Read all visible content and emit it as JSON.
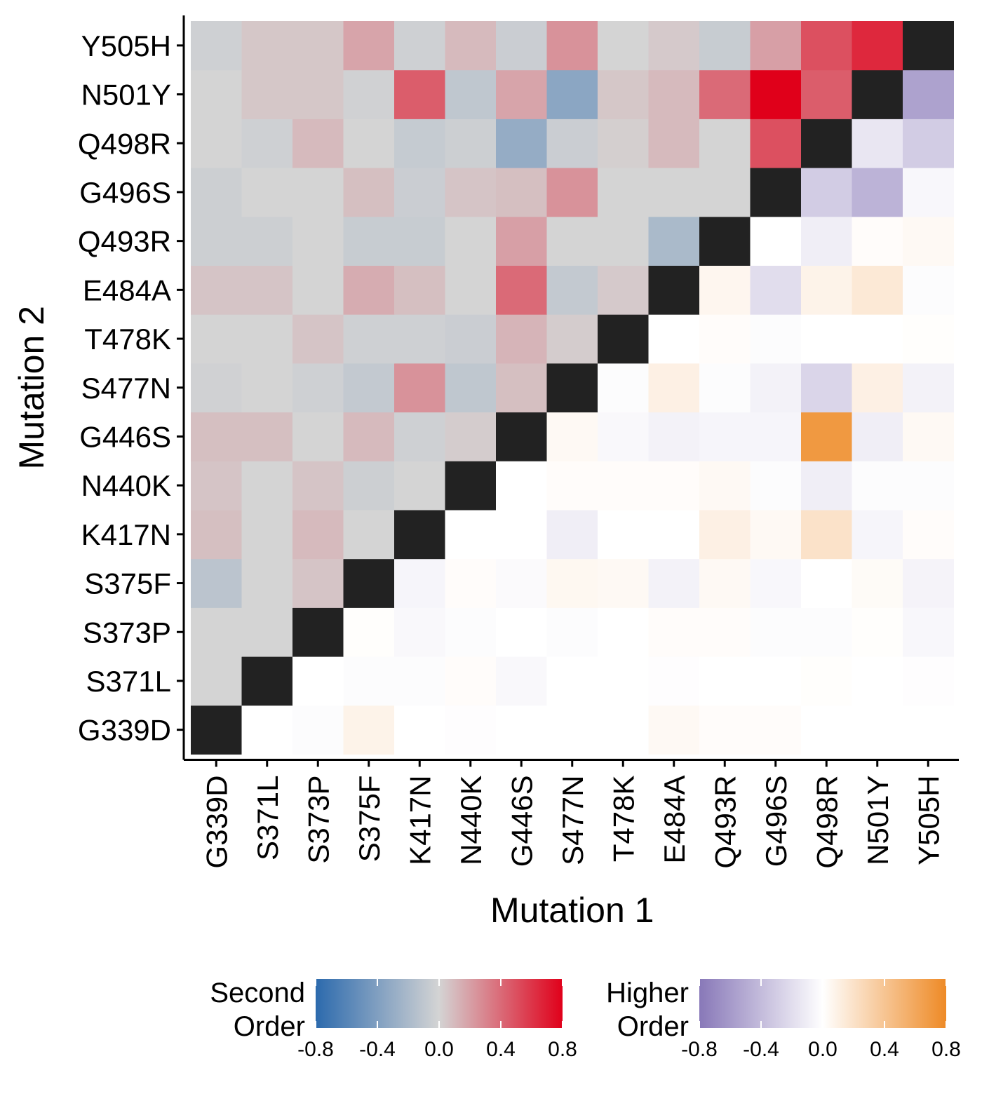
{
  "chart_data": {
    "type": "heatmap",
    "xlabel": "Mutation 1",
    "ylabel": "Mutation 2",
    "mutations": [
      "G339D",
      "S371L",
      "S373P",
      "S375F",
      "K417N",
      "N440K",
      "G446S",
      "S477N",
      "T478K",
      "E484A",
      "Q493R",
      "G496S",
      "Q498R",
      "N501Y",
      "Y505H"
    ],
    "note_layout": "lower-left triangle = Second Order (x < y), upper-right triangle = Higher Order (x > y), diagonal = black",
    "second_order": [
      [],
      [
        0.0
      ],
      [
        0.0,
        0.0
      ],
      [
        -0.12,
        0.0,
        0.06
      ],
      [
        0.08,
        0.0,
        0.1,
        0.0
      ],
      [
        0.06,
        0.0,
        0.06,
        -0.04,
        0.0
      ],
      [
        0.08,
        0.08,
        0.0,
        0.1,
        -0.03,
        0.03
      ],
      [
        -0.02,
        0.0,
        -0.03,
        -0.08,
        0.25,
        -0.1,
        0.08
      ],
      [
        0.0,
        0.0,
        0.06,
        -0.03,
        -0.03,
        -0.05,
        0.12,
        0.03
      ],
      [
        0.06,
        0.06,
        0.0,
        0.15,
        0.08,
        0.0,
        0.4,
        -0.08,
        0.04
      ],
      [
        -0.04,
        -0.04,
        0.0,
        -0.06,
        -0.06,
        0.0,
        0.2,
        0.0,
        0.0,
        -0.2
      ],
      [
        -0.04,
        0.0,
        0.0,
        0.08,
        -0.05,
        0.06,
        0.08,
        0.25,
        0.0,
        0.0,
        0.0
      ],
      [
        0.0,
        -0.03,
        0.1,
        0.0,
        -0.07,
        -0.04,
        -0.3,
        -0.05,
        0.02,
        0.1,
        0.0,
        0.5
      ],
      [
        0.0,
        0.05,
        0.05,
        -0.02,
        0.45,
        -0.1,
        0.18,
        -0.35,
        0.05,
        0.1,
        0.4,
        0.8,
        0.45
      ],
      [
        -0.03,
        0.05,
        0.05,
        0.18,
        -0.03,
        0.1,
        -0.05,
        0.25,
        0.0,
        0.04,
        -0.06,
        0.2,
        0.5,
        0.65
      ]
    ],
    "higher_order": [
      [
        null,
        0.0,
        -0.02,
        0.08,
        0.0,
        -0.01,
        0.0,
        0.0,
        0.0,
        0.04,
        0.02,
        0.02,
        0.0,
        0.0,
        0.0
      ],
      [
        null,
        null,
        0.0,
        -0.02,
        -0.02,
        0.02,
        -0.04,
        0.0,
        0.0,
        -0.01,
        0.0,
        0.0,
        0.01,
        0.0,
        -0.01
      ],
      [
        null,
        null,
        null,
        0.01,
        -0.04,
        -0.02,
        0.0,
        -0.02,
        0.0,
        0.02,
        0.02,
        -0.02,
        -0.02,
        0.01,
        -0.05
      ],
      [
        null,
        null,
        null,
        null,
        -0.06,
        0.02,
        -0.03,
        0.05,
        0.04,
        -0.08,
        0.04,
        -0.05,
        0.0,
        0.03,
        -0.07
      ],
      [
        null,
        null,
        null,
        null,
        null,
        0.0,
        0.0,
        -0.1,
        0.0,
        0.0,
        0.1,
        0.04,
        0.2,
        -0.06,
        0.02
      ],
      [
        null,
        null,
        null,
        null,
        null,
        null,
        0.0,
        0.02,
        0.02,
        0.02,
        0.04,
        -0.02,
        -0.1,
        -0.02,
        -0.02
      ],
      [
        null,
        null,
        null,
        null,
        null,
        null,
        null,
        0.04,
        -0.04,
        -0.08,
        -0.06,
        -0.06,
        0.7,
        -0.1,
        0.04
      ],
      [
        null,
        null,
        null,
        null,
        null,
        null,
        null,
        null,
        -0.02,
        0.1,
        -0.02,
        -0.08,
        -0.25,
        0.1,
        -0.08
      ],
      [
        null,
        null,
        null,
        null,
        null,
        null,
        null,
        null,
        null,
        0.0,
        0.02,
        -0.02,
        0.0,
        0.0,
        0.01
      ],
      [
        null,
        null,
        null,
        null,
        null,
        null,
        null,
        null,
        null,
        null,
        0.06,
        -0.2,
        0.08,
        0.15,
        -0.02
      ],
      [
        null,
        null,
        null,
        null,
        null,
        null,
        null,
        null,
        null,
        null,
        null,
        0.0,
        -0.1,
        0.02,
        0.04
      ],
      [
        null,
        null,
        null,
        null,
        null,
        null,
        null,
        null,
        null,
        null,
        null,
        null,
        -0.3,
        -0.45,
        -0.05
      ],
      [
        null,
        null,
        null,
        null,
        null,
        null,
        null,
        null,
        null,
        null,
        null,
        null,
        null,
        -0.15,
        -0.3
      ],
      [
        null,
        null,
        null,
        null,
        null,
        null,
        null,
        null,
        null,
        null,
        null,
        null,
        null,
        null,
        -0.55
      ],
      [
        null,
        null,
        null,
        null,
        null,
        null,
        null,
        null,
        null,
        null,
        null,
        null,
        null,
        null,
        null
      ]
    ],
    "legends": [
      {
        "title_lines": [
          "Second",
          "Order"
        ],
        "colors": [
          "#2c6aad",
          "#d4d4d4",
          "#e0001a"
        ],
        "range": [
          -0.8,
          0.8
        ],
        "ticks": [
          "-0.8",
          "-0.4",
          "0.0",
          "0.4",
          "0.8"
        ]
      },
      {
        "title_lines": [
          "Higher",
          "Order"
        ],
        "colors": [
          "#8878b8",
          "#ffffff",
          "#ee8a26"
        ],
        "range": [
          -0.8,
          0.8
        ],
        "ticks": [
          "-0.8",
          "-0.4",
          "0.0",
          "0.4",
          "0.8"
        ]
      }
    ],
    "diagonal_color": "#222222",
    "legend_position": "bottom"
  }
}
